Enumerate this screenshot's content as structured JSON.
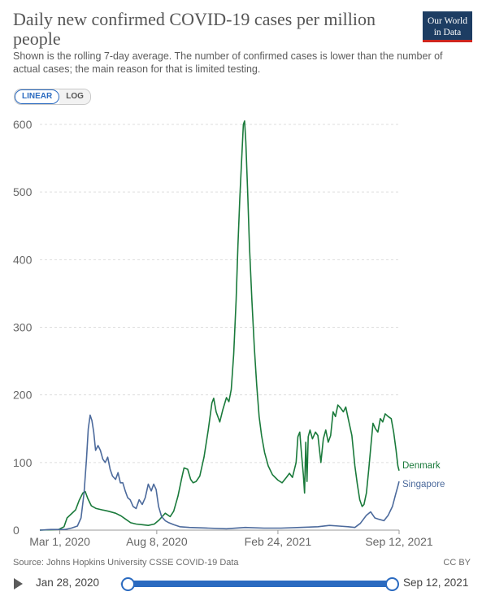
{
  "header": {
    "title": "Daily new confirmed COVID-19 cases per million people",
    "subtitle": "Shown is the rolling 7-day average. The number of confirmed cases is lower than the number of actual cases; the main reason for that is limited testing.",
    "logo_line1": "Our World",
    "logo_line2": "in Data"
  },
  "controls": {
    "linear_label": "LINEAR",
    "log_label": "LOG"
  },
  "footer": {
    "source": "Source: Johns Hopkins University CSSE COVID-19 Data",
    "license": "CC BY"
  },
  "timeline": {
    "start_label": "Jan 28, 2020",
    "end_label": "Sep 12, 2021"
  },
  "colors": {
    "denmark": "#1a7a3b",
    "singapore": "#4c6a9c",
    "accent": "#2a6ac0"
  },
  "chart_data": {
    "type": "line",
    "title": "Daily new confirmed COVID-19 cases per million people",
    "subtitle": "Shown is the rolling 7-day average. The number of confirmed cases is lower than the number of actual cases; the main reason for that is limited testing.",
    "ylim": [
      0,
      600
    ],
    "y_ticks": [
      0,
      100,
      200,
      300,
      400,
      500,
      600
    ],
    "x_ticks": [
      "2020-03-01",
      "2020-08-08",
      "2021-02-24",
      "2021-09-12"
    ],
    "x_tick_labels": [
      "Mar 1, 2020",
      "Aug 8, 2020",
      "Feb 24, 2021",
      "Sep 12, 2021"
    ],
    "xlim": [
      "2020-01-28",
      "2021-09-12"
    ],
    "grid": "horizontal",
    "legend": "right-end-labels",
    "series": [
      {
        "name": "Denmark",
        "color": "#1a7a3b",
        "points": [
          [
            "2020-01-28",
            0
          ],
          [
            "2020-02-28",
            1
          ],
          [
            "2020-03-08",
            5
          ],
          [
            "2020-03-13",
            18
          ],
          [
            "2020-03-20",
            24
          ],
          [
            "2020-03-27",
            30
          ],
          [
            "2020-04-02",
            44
          ],
          [
            "2020-04-08",
            55
          ],
          [
            "2020-04-12",
            57
          ],
          [
            "2020-04-16",
            47
          ],
          [
            "2020-04-22",
            36
          ],
          [
            "2020-04-30",
            32
          ],
          [
            "2020-05-10",
            30
          ],
          [
            "2020-05-20",
            28
          ],
          [
            "2020-06-01",
            25
          ],
          [
            "2020-06-10",
            21
          ],
          [
            "2020-06-18",
            16
          ],
          [
            "2020-06-26",
            11
          ],
          [
            "2020-07-05",
            9
          ],
          [
            "2020-07-15",
            8
          ],
          [
            "2020-07-25",
            7
          ],
          [
            "2020-08-04",
            9
          ],
          [
            "2020-08-12",
            15
          ],
          [
            "2020-08-18",
            21
          ],
          [
            "2020-08-22",
            25
          ],
          [
            "2020-08-30",
            20
          ],
          [
            "2020-09-05",
            28
          ],
          [
            "2020-09-12",
            50
          ],
          [
            "2020-09-18",
            76
          ],
          [
            "2020-09-22",
            92
          ],
          [
            "2020-09-28",
            90
          ],
          [
            "2020-10-03",
            75
          ],
          [
            "2020-10-07",
            70
          ],
          [
            "2020-10-12",
            72
          ],
          [
            "2020-10-18",
            80
          ],
          [
            "2020-10-25",
            108
          ],
          [
            "2020-11-01",
            148
          ],
          [
            "2020-11-07",
            188
          ],
          [
            "2020-11-10",
            195
          ],
          [
            "2020-11-14",
            175
          ],
          [
            "2020-11-20",
            160
          ],
          [
            "2020-11-25",
            178
          ],
          [
            "2020-12-01",
            196
          ],
          [
            "2020-12-05",
            190
          ],
          [
            "2020-12-09",
            208
          ],
          [
            "2020-12-13",
            260
          ],
          [
            "2020-12-17",
            340
          ],
          [
            "2020-12-20",
            420
          ],
          [
            "2020-12-23",
            490
          ],
          [
            "2020-12-26",
            545
          ],
          [
            "2020-12-29",
            600
          ],
          [
            "2020-12-31",
            605
          ],
          [
            "2021-01-02",
            575
          ],
          [
            "2021-01-05",
            500
          ],
          [
            "2021-01-08",
            420
          ],
          [
            "2021-01-12",
            340
          ],
          [
            "2021-01-16",
            270
          ],
          [
            "2021-01-20",
            215
          ],
          [
            "2021-01-24",
            168
          ],
          [
            "2021-01-28",
            140
          ],
          [
            "2021-02-02",
            115
          ],
          [
            "2021-02-08",
            95
          ],
          [
            "2021-02-15",
            82
          ],
          [
            "2021-02-24",
            74
          ],
          [
            "2021-03-03",
            70
          ],
          [
            "2021-03-10",
            78
          ],
          [
            "2021-03-15",
            84
          ],
          [
            "2021-03-20",
            78
          ],
          [
            "2021-03-26",
            100
          ],
          [
            "2021-03-29",
            138
          ],
          [
            "2021-04-01",
            145
          ],
          [
            "2021-04-04",
            112
          ],
          [
            "2021-04-07",
            82
          ],
          [
            "2021-04-09",
            55
          ],
          [
            "2021-04-11",
            130
          ],
          [
            "2021-04-13",
            72
          ],
          [
            "2021-04-15",
            138
          ],
          [
            "2021-04-18",
            148
          ],
          [
            "2021-04-22",
            135
          ],
          [
            "2021-04-27",
            145
          ],
          [
            "2021-05-01",
            140
          ],
          [
            "2021-05-06",
            100
          ],
          [
            "2021-05-10",
            135
          ],
          [
            "2021-05-14",
            148
          ],
          [
            "2021-05-18",
            130
          ],
          [
            "2021-05-22",
            140
          ],
          [
            "2021-05-26",
            175
          ],
          [
            "2021-05-30",
            168
          ],
          [
            "2021-06-03",
            185
          ],
          [
            "2021-06-08",
            180
          ],
          [
            "2021-06-12",
            175
          ],
          [
            "2021-06-16",
            182
          ],
          [
            "2021-06-20",
            165
          ],
          [
            "2021-06-26",
            140
          ],
          [
            "2021-07-01",
            95
          ],
          [
            "2021-07-05",
            68
          ],
          [
            "2021-07-09",
            45
          ],
          [
            "2021-07-13",
            35
          ],
          [
            "2021-07-16",
            38
          ],
          [
            "2021-07-20",
            55
          ],
          [
            "2021-07-24",
            90
          ],
          [
            "2021-07-28",
            130
          ],
          [
            "2021-07-31",
            158
          ],
          [
            "2021-08-04",
            150
          ],
          [
            "2021-08-08",
            145
          ],
          [
            "2021-08-12",
            165
          ],
          [
            "2021-08-16",
            160
          ],
          [
            "2021-08-20",
            172
          ],
          [
            "2021-08-25",
            168
          ],
          [
            "2021-08-30",
            165
          ],
          [
            "2021-09-03",
            145
          ],
          [
            "2021-09-07",
            118
          ],
          [
            "2021-09-10",
            95
          ],
          [
            "2021-09-12",
            88
          ]
        ]
      },
      {
        "name": "Singapore",
        "color": "#4c6a9c",
        "points": [
          [
            "2020-01-28",
            0
          ],
          [
            "2020-02-15",
            1
          ],
          [
            "2020-03-10",
            1
          ],
          [
            "2020-03-20",
            3
          ],
          [
            "2020-03-30",
            6
          ],
          [
            "2020-04-05",
            18
          ],
          [
            "2020-04-10",
            55
          ],
          [
            "2020-04-14",
            105
          ],
          [
            "2020-04-17",
            150
          ],
          [
            "2020-04-20",
            170
          ],
          [
            "2020-04-23",
            162
          ],
          [
            "2020-04-26",
            145
          ],
          [
            "2020-04-29",
            118
          ],
          [
            "2020-05-03",
            125
          ],
          [
            "2020-05-07",
            118
          ],
          [
            "2020-05-11",
            105
          ],
          [
            "2020-05-15",
            100
          ],
          [
            "2020-05-19",
            108
          ],
          [
            "2020-05-23",
            90
          ],
          [
            "2020-05-27",
            80
          ],
          [
            "2020-06-01",
            75
          ],
          [
            "2020-06-05",
            85
          ],
          [
            "2020-06-09",
            70
          ],
          [
            "2020-06-13",
            70
          ],
          [
            "2020-06-17",
            58
          ],
          [
            "2020-06-21",
            48
          ],
          [
            "2020-06-25",
            45
          ],
          [
            "2020-06-30",
            35
          ],
          [
            "2020-07-05",
            32
          ],
          [
            "2020-07-10",
            45
          ],
          [
            "2020-07-15",
            38
          ],
          [
            "2020-07-20",
            48
          ],
          [
            "2020-07-25",
            68
          ],
          [
            "2020-07-30",
            58
          ],
          [
            "2020-08-03",
            68
          ],
          [
            "2020-08-07",
            60
          ],
          [
            "2020-08-11",
            35
          ],
          [
            "2020-08-16",
            20
          ],
          [
            "2020-08-22",
            14
          ],
          [
            "2020-08-28",
            11
          ],
          [
            "2020-09-05",
            8
          ],
          [
            "2020-09-15",
            5
          ],
          [
            "2020-10-01",
            4
          ],
          [
            "2020-11-01",
            3
          ],
          [
            "2020-12-01",
            2
          ],
          [
            "2021-01-01",
            4
          ],
          [
            "2021-02-01",
            3
          ],
          [
            "2021-03-01",
            3
          ],
          [
            "2021-04-01",
            4
          ],
          [
            "2021-05-01",
            5
          ],
          [
            "2021-05-20",
            7
          ],
          [
            "2021-06-05",
            6
          ],
          [
            "2021-06-20",
            5
          ],
          [
            "2021-07-01",
            4
          ],
          [
            "2021-07-10",
            10
          ],
          [
            "2021-07-20",
            22
          ],
          [
            "2021-07-27",
            27
          ],
          [
            "2021-08-03",
            18
          ],
          [
            "2021-08-10",
            16
          ],
          [
            "2021-08-18",
            14
          ],
          [
            "2021-08-25",
            22
          ],
          [
            "2021-09-01",
            35
          ],
          [
            "2021-09-06",
            52
          ],
          [
            "2021-09-10",
            65
          ],
          [
            "2021-09-12",
            72
          ]
        ]
      }
    ]
  }
}
